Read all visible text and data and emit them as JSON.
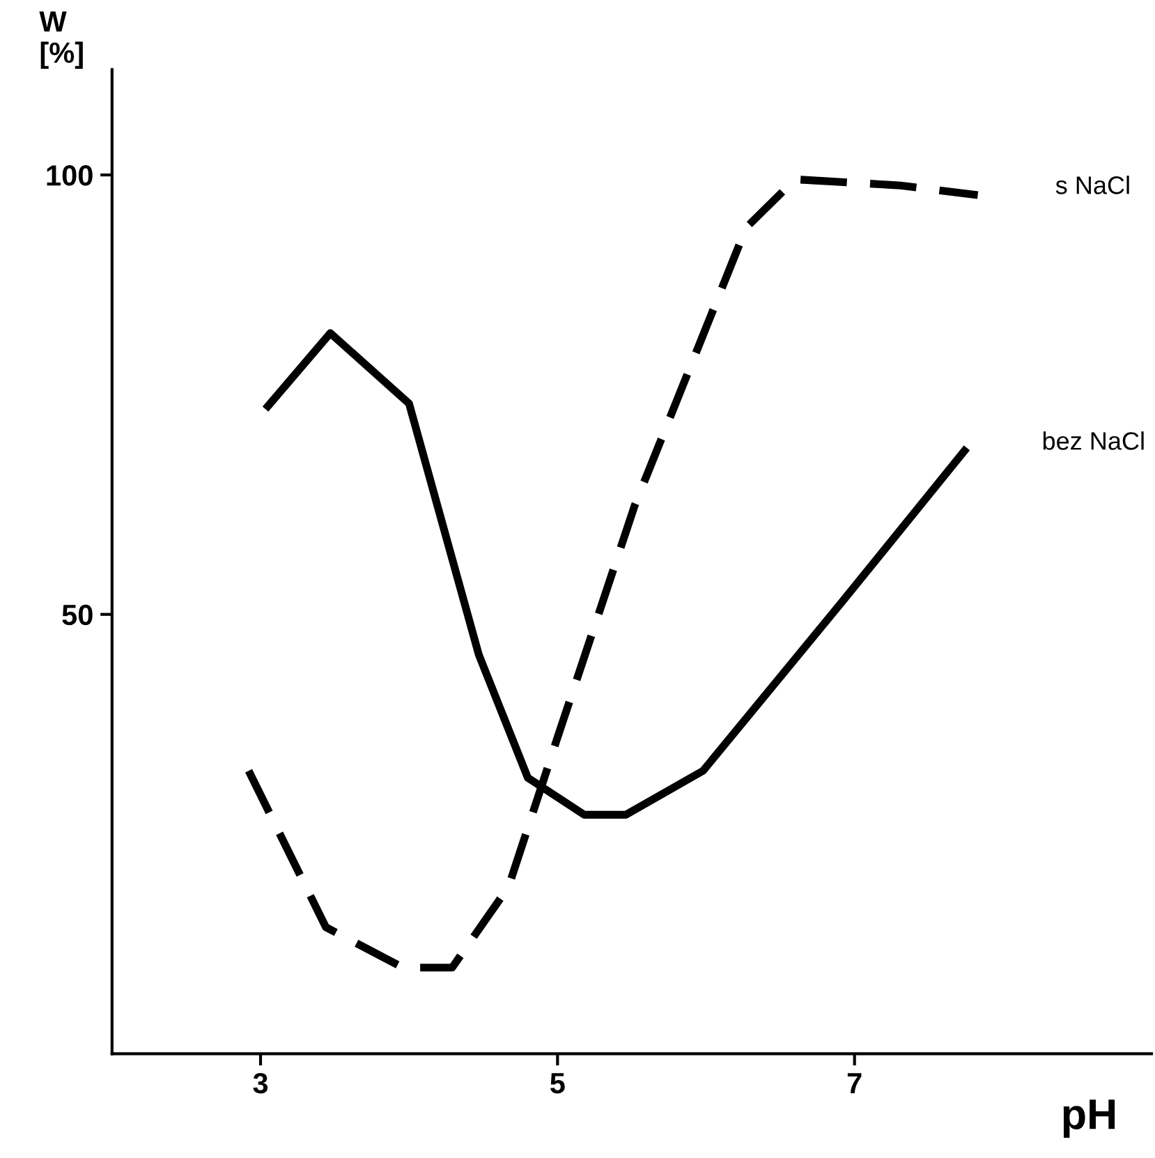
{
  "chart_data": {
    "type": "line",
    "xlabel": "pH",
    "ylabel": "W\n[%]",
    "xlim": [
      2,
      9
    ],
    "ylim": [
      0,
      112
    ],
    "xticks": [
      3,
      5,
      7
    ],
    "yticks": [
      50,
      100
    ],
    "grid": false,
    "legend": false,
    "marker": "none",
    "series": [
      {
        "name": "bez NaCl",
        "color": "#000000",
        "line_style": "solid",
        "x": [
          3.05,
          3.47,
          4.0,
          4.47,
          4.8,
          5.18,
          5.46,
          5.98,
          6.92,
          7.74
        ],
        "values": [
          73.7,
          82,
          74,
          45.4,
          31.4,
          27.2,
          27.2,
          32.2,
          51.5,
          68.6
        ]
      },
      {
        "name": "s NaCl",
        "color": "#000000",
        "line_style": "dashed",
        "x": [
          2.92,
          3.44,
          3.96,
          4.29,
          4.67,
          5.0,
          5.52,
          6.27,
          6.6,
          7.31,
          7.83
        ],
        "values": [
          32.2,
          14.4,
          9.8,
          9.8,
          19,
          36,
          62.4,
          94,
          99.5,
          98.8,
          97.7
        ]
      }
    ]
  }
}
